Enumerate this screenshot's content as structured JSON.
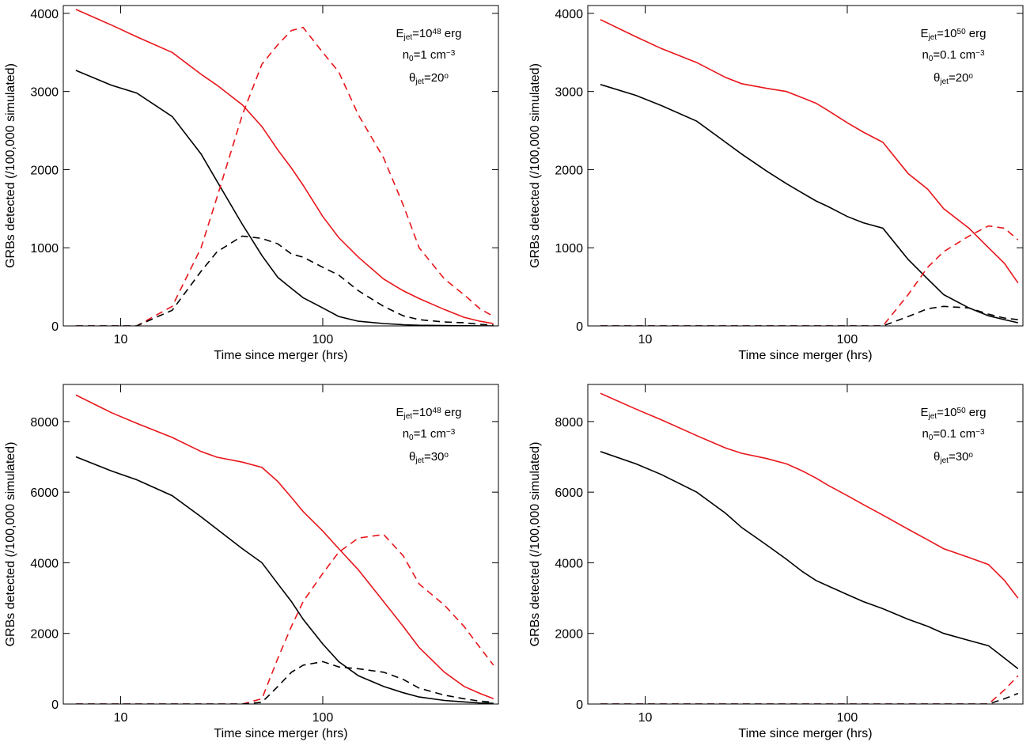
{
  "chart_data": [
    {
      "type": "line",
      "x_label": "Time since merger (hrs)",
      "y_label": "GRBs detected (/100,000 simulated)",
      "x_log": true,
      "xlim": [
        5.2,
        740
      ],
      "xticks": [
        10,
        100
      ],
      "ylim": [
        0,
        4100
      ],
      "yticks": [
        0,
        1000,
        2000,
        3000,
        4000
      ],
      "annotation": [
        [
          {
            "text": "E"
          },
          {
            "text": "jet",
            "script": "sub"
          },
          {
            "text": "=10"
          },
          {
            "text": "48",
            "script": "sup"
          },
          {
            "text": " erg"
          }
        ],
        [
          {
            "text": "n"
          },
          {
            "text": "0",
            "script": "sub"
          },
          {
            "text": "=1 cm"
          },
          {
            "text": "−3",
            "script": "sup"
          }
        ],
        [
          {
            "text": "θ"
          },
          {
            "text": "jet",
            "script": "sub"
          },
          {
            "text": "=20"
          },
          {
            "text": "o",
            "script": "sup"
          }
        ]
      ],
      "x": [
        6,
        9,
        12,
        18,
        25,
        30,
        40,
        50,
        60,
        70,
        80,
        100,
        120,
        150,
        200,
        250,
        300,
        400,
        500,
        600,
        700
      ],
      "series": [
        {
          "color": "#e8161b",
          "dashed": false,
          "values": [
            4050,
            3850,
            3700,
            3500,
            3220,
            3080,
            2830,
            2550,
            2250,
            2020,
            1800,
            1400,
            1130,
            880,
            600,
            450,
            350,
            210,
            110,
            60,
            30
          ]
        },
        {
          "color": "#000000",
          "dashed": false,
          "values": [
            3270,
            3080,
            2980,
            2680,
            2200,
            1850,
            1300,
            900,
            620,
            480,
            360,
            230,
            120,
            60,
            30,
            15,
            8,
            4,
            2,
            1,
            0
          ]
        },
        {
          "color": "#e8161b",
          "dashed": true,
          "values": [
            0,
            0,
            0,
            250,
            1000,
            1650,
            2700,
            3350,
            3600,
            3780,
            3820,
            3500,
            3250,
            2700,
            2150,
            1550,
            1000,
            600,
            400,
            220,
            120
          ]
        },
        {
          "color": "#000000",
          "dashed": true,
          "values": [
            0,
            0,
            0,
            200,
            700,
            950,
            1150,
            1120,
            1050,
            920,
            880,
            750,
            650,
            450,
            250,
            130,
            80,
            50,
            40,
            20,
            10
          ]
        }
      ]
    },
    {
      "type": "line",
      "x_label": "Time since merger (hrs)",
      "y_label": "GRBs detected (/100,000 simulated)",
      "x_log": true,
      "xlim": [
        5.2,
        740
      ],
      "xticks": [
        10,
        100
      ],
      "ylim": [
        0,
        4100
      ],
      "yticks": [
        0,
        1000,
        2000,
        3000,
        4000
      ],
      "annotation": [
        [
          {
            "text": "E"
          },
          {
            "text": "jet",
            "script": "sub"
          },
          {
            "text": "=10"
          },
          {
            "text": "50",
            "script": "sup"
          },
          {
            "text": " erg"
          }
        ],
        [
          {
            "text": "n"
          },
          {
            "text": "0",
            "script": "sub"
          },
          {
            "text": "=0.1 cm"
          },
          {
            "text": "−3",
            "script": "sup"
          }
        ],
        [
          {
            "text": "θ"
          },
          {
            "text": "jet",
            "script": "sub"
          },
          {
            "text": "=20"
          },
          {
            "text": "o",
            "script": "sup"
          }
        ]
      ],
      "x": [
        6,
        9,
        12,
        18,
        25,
        30,
        40,
        50,
        60,
        70,
        80,
        100,
        120,
        150,
        200,
        250,
        300,
        400,
        500,
        600,
        700
      ],
      "series": [
        {
          "color": "#e8161b",
          "dashed": false,
          "values": [
            3920,
            3700,
            3550,
            3370,
            3180,
            3100,
            3040,
            3000,
            2920,
            2850,
            2760,
            2600,
            2480,
            2350,
            1950,
            1750,
            1500,
            1250,
            1000,
            800,
            550
          ]
        },
        {
          "color": "#000000",
          "dashed": false,
          "values": [
            3090,
            2950,
            2820,
            2620,
            2350,
            2200,
            1980,
            1820,
            1700,
            1600,
            1530,
            1400,
            1320,
            1250,
            850,
            600,
            400,
            230,
            130,
            80,
            40
          ]
        },
        {
          "color": "#e8161b",
          "dashed": true,
          "values": [
            0,
            0,
            0,
            0,
            0,
            0,
            0,
            0,
            0,
            0,
            0,
            0,
            0,
            0,
            400,
            750,
            950,
            1150,
            1280,
            1250,
            1100
          ]
        },
        {
          "color": "#000000",
          "dashed": true,
          "values": [
            0,
            0,
            0,
            0,
            0,
            0,
            0,
            0,
            0,
            0,
            0,
            0,
            0,
            0,
            120,
            220,
            250,
            230,
            150,
            100,
            80
          ]
        }
      ]
    },
    {
      "type": "line",
      "x_label": "Time since merger (hrs)",
      "y_label": "GRBs detected (/100,000 simulated)",
      "x_log": true,
      "xlim": [
        5.2,
        740
      ],
      "xticks": [
        10,
        100
      ],
      "ylim": [
        0,
        9050
      ],
      "yticks": [
        0,
        2000,
        4000,
        6000,
        8000
      ],
      "annotation": [
        [
          {
            "text": "E"
          },
          {
            "text": "jet",
            "script": "sub"
          },
          {
            "text": "=10"
          },
          {
            "text": "48",
            "script": "sup"
          },
          {
            "text": " erg"
          }
        ],
        [
          {
            "text": "n"
          },
          {
            "text": "0",
            "script": "sub"
          },
          {
            "text": "=1 cm"
          },
          {
            "text": "−3",
            "script": "sup"
          }
        ],
        [
          {
            "text": "θ"
          },
          {
            "text": "jet",
            "script": "sub"
          },
          {
            "text": "=30"
          },
          {
            "text": "o",
            "script": "sup"
          }
        ]
      ],
      "x": [
        6,
        9,
        12,
        18,
        25,
        30,
        40,
        50,
        60,
        70,
        80,
        100,
        120,
        150,
        200,
        250,
        300,
        400,
        500,
        600,
        700
      ],
      "series": [
        {
          "color": "#e8161b",
          "dashed": false,
          "values": [
            8750,
            8250,
            7950,
            7550,
            7150,
            6990,
            6850,
            6700,
            6300,
            5850,
            5450,
            4900,
            4400,
            3800,
            2900,
            2200,
            1600,
            900,
            500,
            300,
            150
          ]
        },
        {
          "color": "#000000",
          "dashed": false,
          "values": [
            7000,
            6600,
            6350,
            5900,
            5300,
            4950,
            4400,
            4000,
            3400,
            2900,
            2400,
            1700,
            1200,
            800,
            500,
            320,
            200,
            100,
            60,
            30,
            20
          ]
        },
        {
          "color": "#e8161b",
          "dashed": true,
          "values": [
            0,
            0,
            0,
            0,
            0,
            0,
            0,
            150,
            1300,
            2200,
            2900,
            3700,
            4300,
            4700,
            4800,
            4200,
            3400,
            2800,
            2200,
            1600,
            1100
          ]
        },
        {
          "color": "#000000",
          "dashed": true,
          "values": [
            0,
            0,
            0,
            0,
            0,
            0,
            0,
            50,
            500,
            900,
            1100,
            1200,
            1050,
            1000,
            900,
            700,
            450,
            250,
            150,
            80,
            50
          ]
        }
      ]
    },
    {
      "type": "line",
      "x_label": "Time since merger (hrs)",
      "y_label": "GRBs detected (/100,000 simulated)",
      "x_log": true,
      "xlim": [
        5.2,
        740
      ],
      "xticks": [
        10,
        100
      ],
      "ylim": [
        0,
        9050
      ],
      "yticks": [
        0,
        2000,
        4000,
        6000,
        8000
      ],
      "annotation": [
        [
          {
            "text": "E"
          },
          {
            "text": "jet",
            "script": "sub"
          },
          {
            "text": "=10"
          },
          {
            "text": "50",
            "script": "sup"
          },
          {
            "text": " erg"
          }
        ],
        [
          {
            "text": "n"
          },
          {
            "text": "0",
            "script": "sub"
          },
          {
            "text": "=0.1 cm"
          },
          {
            "text": "−3",
            "script": "sup"
          }
        ],
        [
          {
            "text": "θ"
          },
          {
            "text": "jet",
            "script": "sub"
          },
          {
            "text": "=30"
          },
          {
            "text": "o",
            "script": "sup"
          }
        ]
      ],
      "x": [
        6,
        9,
        12,
        18,
        25,
        30,
        40,
        50,
        60,
        70,
        80,
        100,
        120,
        150,
        200,
        250,
        300,
        400,
        500,
        600,
        700
      ],
      "series": [
        {
          "color": "#e8161b",
          "dashed": false,
          "values": [
            8800,
            8350,
            8050,
            7600,
            7250,
            7100,
            6950,
            6800,
            6600,
            6400,
            6200,
            5900,
            5650,
            5350,
            4950,
            4650,
            4400,
            4150,
            3950,
            3500,
            3000
          ]
        },
        {
          "color": "#000000",
          "dashed": false,
          "values": [
            7150,
            6800,
            6500,
            6000,
            5400,
            5000,
            4500,
            4100,
            3750,
            3500,
            3350,
            3100,
            2900,
            2700,
            2400,
            2200,
            2000,
            1800,
            1650,
            1300,
            1000
          ]
        },
        {
          "color": "#e8161b",
          "dashed": true,
          "values": [
            0,
            0,
            0,
            0,
            0,
            0,
            0,
            0,
            0,
            0,
            0,
            0,
            0,
            0,
            0,
            0,
            0,
            0,
            0,
            400,
            800
          ]
        },
        {
          "color": "#000000",
          "dashed": true,
          "values": [
            0,
            0,
            0,
            0,
            0,
            0,
            0,
            0,
            0,
            0,
            0,
            0,
            0,
            0,
            0,
            0,
            0,
            0,
            0,
            150,
            300
          ]
        }
      ]
    }
  ]
}
